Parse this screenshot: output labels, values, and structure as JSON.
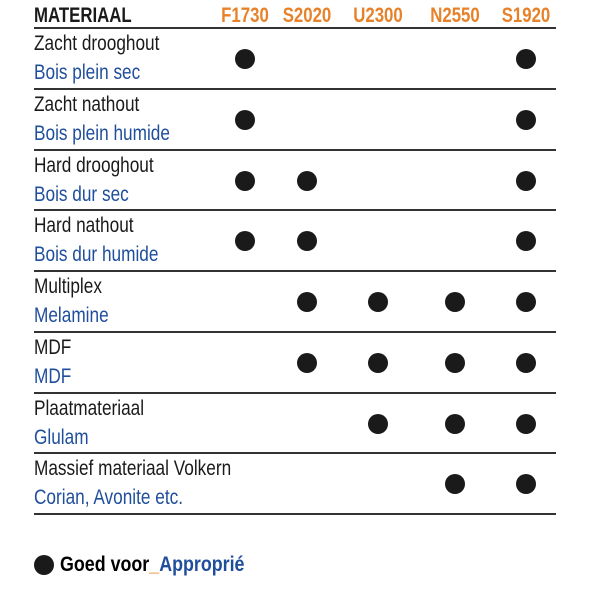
{
  "header": {
    "material": "MATERIAAL",
    "columns": [
      "F1730",
      "S2020",
      "U2300",
      "N2550",
      "S1920"
    ]
  },
  "rows": [
    {
      "nl": "Zacht drooghout",
      "fr": "Bois plein sec",
      "suitable": [
        true,
        false,
        false,
        false,
        true
      ]
    },
    {
      "nl": "Zacht nathout",
      "fr": "Bois plein humide",
      "suitable": [
        true,
        false,
        false,
        false,
        true
      ]
    },
    {
      "nl": "Hard drooghout",
      "fr": "Bois dur sec",
      "suitable": [
        true,
        true,
        false,
        false,
        true
      ]
    },
    {
      "nl": "Hard nathout",
      "fr": "Bois dur humide",
      "suitable": [
        true,
        true,
        false,
        false,
        true
      ]
    },
    {
      "nl": "Multiplex",
      "fr": "Melamine",
      "suitable": [
        false,
        true,
        true,
        true,
        true
      ]
    },
    {
      "nl": "MDF",
      "fr": "MDF",
      "suitable": [
        false,
        true,
        true,
        true,
        true
      ]
    },
    {
      "nl": "Plaatmateriaal",
      "fr": "Glulam",
      "suitable": [
        false,
        false,
        true,
        true,
        true
      ]
    },
    {
      "nl": "Massief materiaal Volkern",
      "fr": "Corian, Avonite etc.",
      "suitable": [
        false,
        false,
        false,
        true,
        true
      ]
    }
  ],
  "legend": {
    "nl": "Goed voor",
    "separator": "_",
    "fr": "Approprié"
  },
  "colors": {
    "header_accent": "#e8822a",
    "french_text": "#1f4e9c",
    "dot": "#1a1a1a"
  }
}
